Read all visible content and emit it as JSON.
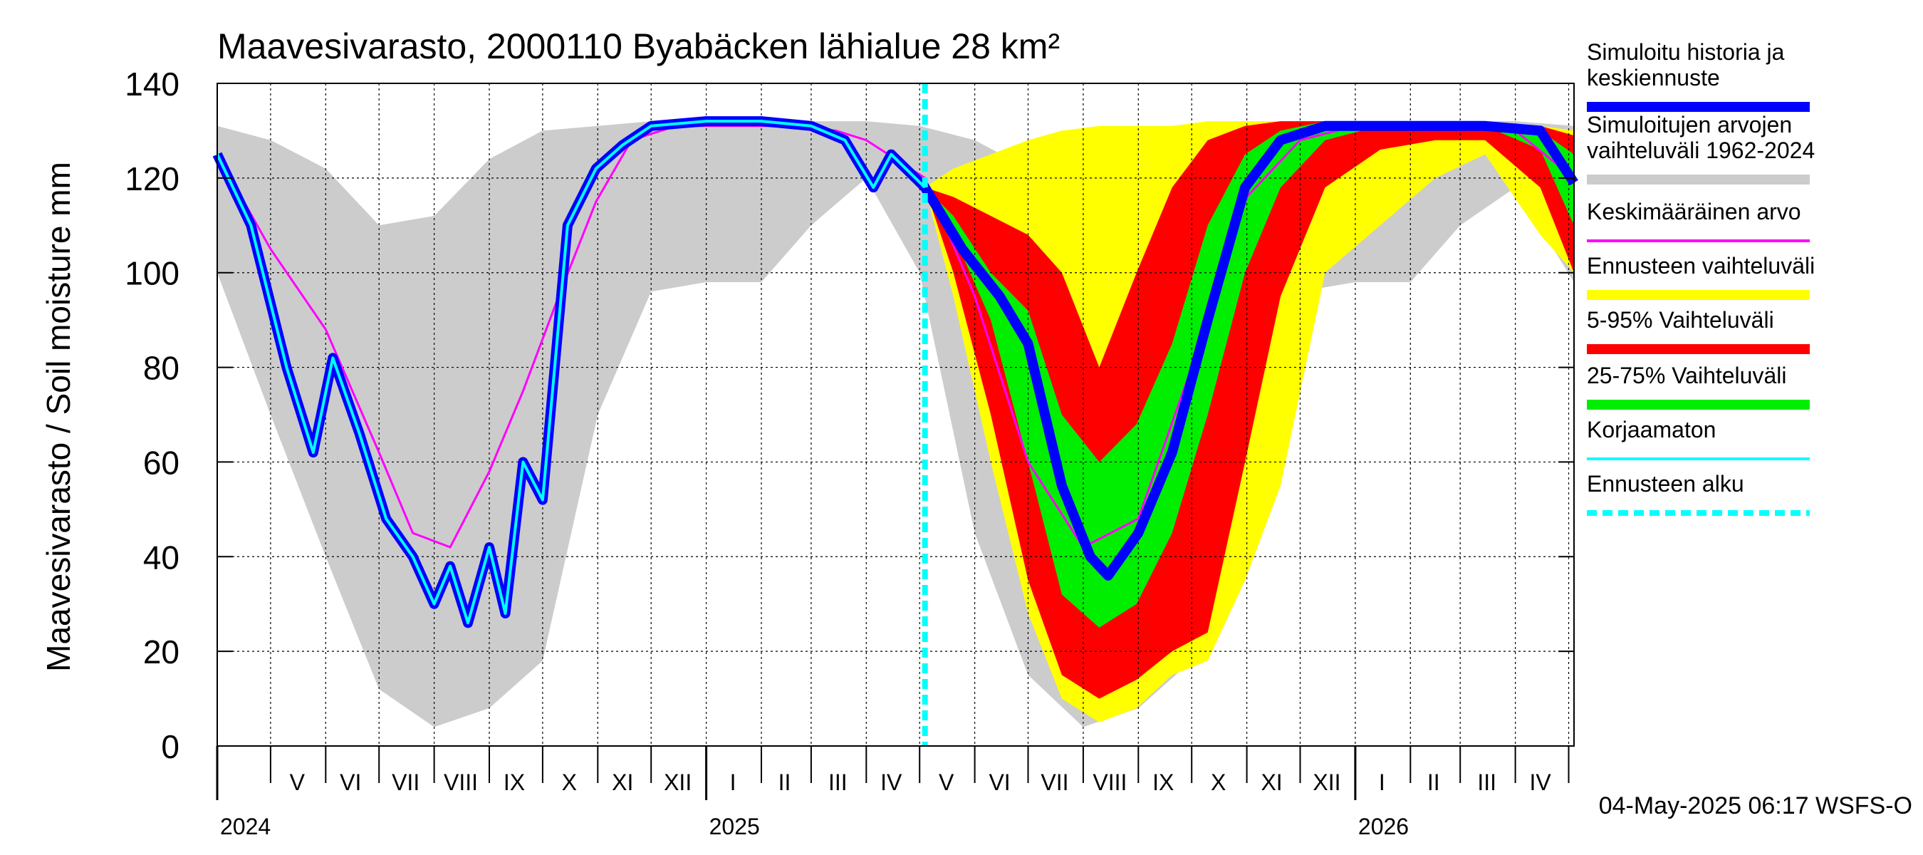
{
  "chart_data": {
    "type": "area",
    "title": "Maavesivarasto, 2000110 Byabäcken  lähialue 28 km²",
    "ylabel": "Maavesivarasto / Soil moisture   mm",
    "ylim": [
      0,
      140
    ],
    "xlim": [
      "2024-04-01",
      "2026-05-04"
    ],
    "yticks": [
      0,
      20,
      40,
      60,
      80,
      100,
      120,
      140
    ],
    "grid": true,
    "legend_position": "right",
    "forecast_start": "2025-05-04",
    "timestamp": "04-May-2025 06:17 WSFS-O",
    "month_labels": [
      {
        "label": "V",
        "date": "2024-05-16"
      },
      {
        "label": "VI",
        "date": "2024-06-15"
      },
      {
        "label": "VII",
        "date": "2024-07-16"
      },
      {
        "label": "VIII",
        "date": "2024-08-16"
      },
      {
        "label": "IX",
        "date": "2024-09-15"
      },
      {
        "label": "X",
        "date": "2024-10-16"
      },
      {
        "label": "XI",
        "date": "2024-11-15"
      },
      {
        "label": "XII",
        "date": "2024-12-16"
      },
      {
        "label": "I",
        "date": "2025-01-16"
      },
      {
        "label": "II",
        "date": "2025-02-14"
      },
      {
        "label": "III",
        "date": "2025-03-16"
      },
      {
        "label": "IV",
        "date": "2025-04-15"
      },
      {
        "label": "V",
        "date": "2025-05-16"
      },
      {
        "label": "VI",
        "date": "2025-06-15"
      },
      {
        "label": "VII",
        "date": "2025-07-16"
      },
      {
        "label": "VIII",
        "date": "2025-08-16"
      },
      {
        "label": "IX",
        "date": "2025-09-15"
      },
      {
        "label": "X",
        "date": "2025-10-16"
      },
      {
        "label": "XI",
        "date": "2025-11-15"
      },
      {
        "label": "XII",
        "date": "2025-12-16"
      },
      {
        "label": "I",
        "date": "2026-01-16"
      },
      {
        "label": "II",
        "date": "2026-02-14"
      },
      {
        "label": "III",
        "date": "2026-03-16"
      },
      {
        "label": "IV",
        "date": "2026-04-15"
      }
    ],
    "year_labels": [
      {
        "label": "2024",
        "date": "2024-04-01"
      },
      {
        "label": "2025",
        "date": "2025-01-01"
      },
      {
        "label": "2026",
        "date": "2026-01-01"
      }
    ],
    "legend": [
      {
        "label": "Simuloitu historia ja\nkeskiennuste",
        "color": "#0000ff",
        "style": "solid"
      },
      {
        "label": "Simuloitujen arvojen\nvaihteluväli 1962-2024",
        "color": "#cccccc",
        "style": "solid"
      },
      {
        "label": "Keskimääräinen arvo",
        "color": "#ff00ff",
        "style": "thin"
      },
      {
        "label": "Ennusteen vaihteluväli",
        "color": "#ffff00",
        "style": "solid"
      },
      {
        "label": "5-95% Vaihteluväli",
        "color": "#ff0000",
        "style": "solid"
      },
      {
        "label": "25-75% Vaihteluväli",
        "color": "#00ee00",
        "style": "solid"
      },
      {
        "label": "Korjaamaton",
        "color": "#00ffff",
        "style": "thin"
      },
      {
        "label": "Ennusteen alku",
        "color": "#00ffff",
        "style": "dashed"
      }
    ],
    "colors": {
      "history_range": "#cccccc",
      "forecast_range": "#ffff00",
      "p5_95": "#ff0000",
      "p25_75": "#00ee00",
      "simulated": "#0000ff",
      "uncorrected": "#00ffff",
      "mean": "#ff00ff",
      "forecast_start": "#00ffff"
    },
    "series": [
      {
        "name": "Simuloitujen arvojen vaihteluväli 1962-2024",
        "kind": "band",
        "x": [
          "2024-04-01",
          "2024-05-01",
          "2024-06-01",
          "2024-07-01",
          "2024-08-01",
          "2024-09-01",
          "2024-10-01",
          "2024-11-01",
          "2024-12-01",
          "2025-01-01",
          "2025-02-01",
          "2025-03-01",
          "2025-04-01",
          "2025-05-01",
          "2025-06-01",
          "2025-07-01",
          "2025-08-01",
          "2025-09-01",
          "2025-10-01",
          "2025-11-01",
          "2025-12-01",
          "2026-01-01",
          "2026-02-01",
          "2026-03-01",
          "2026-04-01",
          "2026-05-04"
        ],
        "low": [
          100,
          70,
          40,
          12,
          4,
          8,
          18,
          70,
          96,
          98,
          98,
          110,
          120,
          100,
          45,
          15,
          4,
          8,
          18,
          70,
          96,
          98,
          98,
          110,
          118,
          98
        ],
        "high": [
          131,
          128,
          122,
          110,
          112,
          124,
          130,
          131,
          132,
          132,
          132,
          132,
          132,
          131,
          128,
          122,
          112,
          124,
          130,
          131,
          132,
          132,
          132,
          132,
          132,
          131
        ]
      },
      {
        "name": "Ennusteen vaihteluväli",
        "kind": "band",
        "x": [
          "2025-05-04",
          "2025-05-20",
          "2025-06-10",
          "2025-07-01",
          "2025-07-20",
          "2025-08-10",
          "2025-08-31",
          "2025-09-20",
          "2025-10-10",
          "2025-10-31",
          "2025-11-20",
          "2025-12-15",
          "2026-01-15",
          "2026-02-15",
          "2026-03-15",
          "2026-04-15",
          "2026-05-04"
        ],
        "low": [
          118,
          95,
          60,
          28,
          10,
          5,
          8,
          15,
          18,
          35,
          55,
          100,
          110,
          120,
          125,
          108,
          100
        ],
        "high": [
          118,
          122,
          125,
          128,
          130,
          131,
          131,
          131,
          132,
          132,
          132,
          132,
          132,
          132,
          132,
          131,
          130
        ]
      },
      {
        "name": "5-95% Vaihteluväli",
        "kind": "band",
        "x": [
          "2025-05-04",
          "2025-05-20",
          "2025-06-10",
          "2025-07-01",
          "2025-07-20",
          "2025-08-10",
          "2025-08-31",
          "2025-09-20",
          "2025-10-10",
          "2025-10-31",
          "2025-11-20",
          "2025-12-15",
          "2026-01-15",
          "2026-02-15",
          "2026-03-15",
          "2026-04-15",
          "2026-05-04"
        ],
        "low": [
          118,
          100,
          70,
          35,
          15,
          10,
          14,
          20,
          24,
          60,
          95,
          118,
          126,
          128,
          128,
          118,
          100
        ],
        "high": [
          118,
          116,
          112,
          108,
          100,
          80,
          100,
          118,
          128,
          131,
          132,
          132,
          132,
          132,
          132,
          131,
          129
        ]
      },
      {
        "name": "25-75% Vaihteluväli",
        "kind": "band",
        "x": [
          "2025-05-04",
          "2025-05-20",
          "2025-06-10",
          "2025-07-01",
          "2025-07-20",
          "2025-08-10",
          "2025-08-31",
          "2025-09-20",
          "2025-10-10",
          "2025-10-31",
          "2025-11-20",
          "2025-12-15",
          "2026-01-15",
          "2026-02-15",
          "2026-03-15",
          "2026-04-15",
          "2026-05-04"
        ],
        "low": [
          118,
          108,
          90,
          60,
          32,
          25,
          30,
          45,
          70,
          100,
          118,
          128,
          131,
          131,
          131,
          126,
          110
        ],
        "high": [
          118,
          112,
          100,
          92,
          70,
          60,
          68,
          85,
          110,
          125,
          130,
          132,
          132,
          132,
          132,
          130,
          125
        ]
      },
      {
        "name": "Keskimääräinen arvo",
        "kind": "line",
        "x": [
          "2024-04-01",
          "2024-05-01",
          "2024-06-01",
          "2024-07-01",
          "2024-07-20",
          "2024-08-10",
          "2024-09-01",
          "2024-09-20",
          "2024-10-10",
          "2024-10-31",
          "2024-11-20",
          "2024-12-15",
          "2025-01-15",
          "2025-02-15",
          "2025-03-15",
          "2025-04-01",
          "2025-05-04",
          "2025-06-01",
          "2025-07-01",
          "2025-08-01",
          "2025-09-01",
          "2025-10-01",
          "2025-11-01",
          "2025-12-01",
          "2026-01-01",
          "2026-02-01",
          "2026-03-01",
          "2026-04-01",
          "2026-05-04"
        ],
        "y": [
          125,
          105,
          88,
          62,
          45,
          42,
          58,
          75,
          95,
          115,
          128,
          131,
          131,
          131,
          130,
          128,
          120,
          95,
          60,
          42,
          48,
          80,
          116,
          128,
          131,
          131,
          131,
          130,
          120
        ]
      },
      {
        "name": "Korjaamaton",
        "kind": "line",
        "x": [
          "2024-04-01",
          "2024-04-20",
          "2024-05-10",
          "2024-05-25",
          "2024-06-05",
          "2024-06-20",
          "2024-07-05",
          "2024-07-20",
          "2024-08-01",
          "2024-08-10",
          "2024-08-20",
          "2024-09-01",
          "2024-09-10",
          "2024-09-20",
          "2024-10-01",
          "2024-10-15",
          "2024-10-31",
          "2024-11-15",
          "2024-12-01",
          "2025-01-01",
          "2025-02-01",
          "2025-03-01",
          "2025-03-20",
          "2025-04-05",
          "2025-04-15",
          "2025-05-04"
        ],
        "y": [
          125,
          110,
          80,
          62,
          82,
          66,
          48,
          40,
          30,
          38,
          26,
          42,
          28,
          60,
          52,
          110,
          122,
          127,
          131,
          132,
          132,
          131,
          128,
          118,
          125,
          118
        ]
      },
      {
        "name": "Simuloitu historia ja keskiennuste",
        "kind": "line",
        "x": [
          "2024-04-01",
          "2024-04-20",
          "2024-05-10",
          "2024-05-25",
          "2024-06-05",
          "2024-06-20",
          "2024-07-05",
          "2024-07-20",
          "2024-08-01",
          "2024-08-10",
          "2024-08-20",
          "2024-09-01",
          "2024-09-10",
          "2024-09-20",
          "2024-10-01",
          "2024-10-15",
          "2024-10-31",
          "2024-11-15",
          "2024-12-01",
          "2025-01-01",
          "2025-02-01",
          "2025-03-01",
          "2025-03-20",
          "2025-04-05",
          "2025-04-15",
          "2025-05-04",
          "2025-05-25",
          "2025-06-15",
          "2025-07-01",
          "2025-07-20",
          "2025-08-05",
          "2025-08-15",
          "2025-09-01",
          "2025-09-20",
          "2025-10-10",
          "2025-10-31",
          "2025-11-20",
          "2025-12-15",
          "2026-01-15",
          "2026-02-15",
          "2026-03-15",
          "2026-04-15",
          "2026-05-04"
        ],
        "y": [
          125,
          110,
          80,
          62,
          82,
          66,
          48,
          40,
          30,
          38,
          26,
          42,
          28,
          60,
          52,
          110,
          122,
          127,
          131,
          132,
          132,
          131,
          128,
          118,
          125,
          118,
          105,
          95,
          85,
          55,
          40,
          36,
          45,
          62,
          90,
          118,
          128,
          131,
          131,
          131,
          131,
          130,
          119
        ]
      }
    ]
  }
}
